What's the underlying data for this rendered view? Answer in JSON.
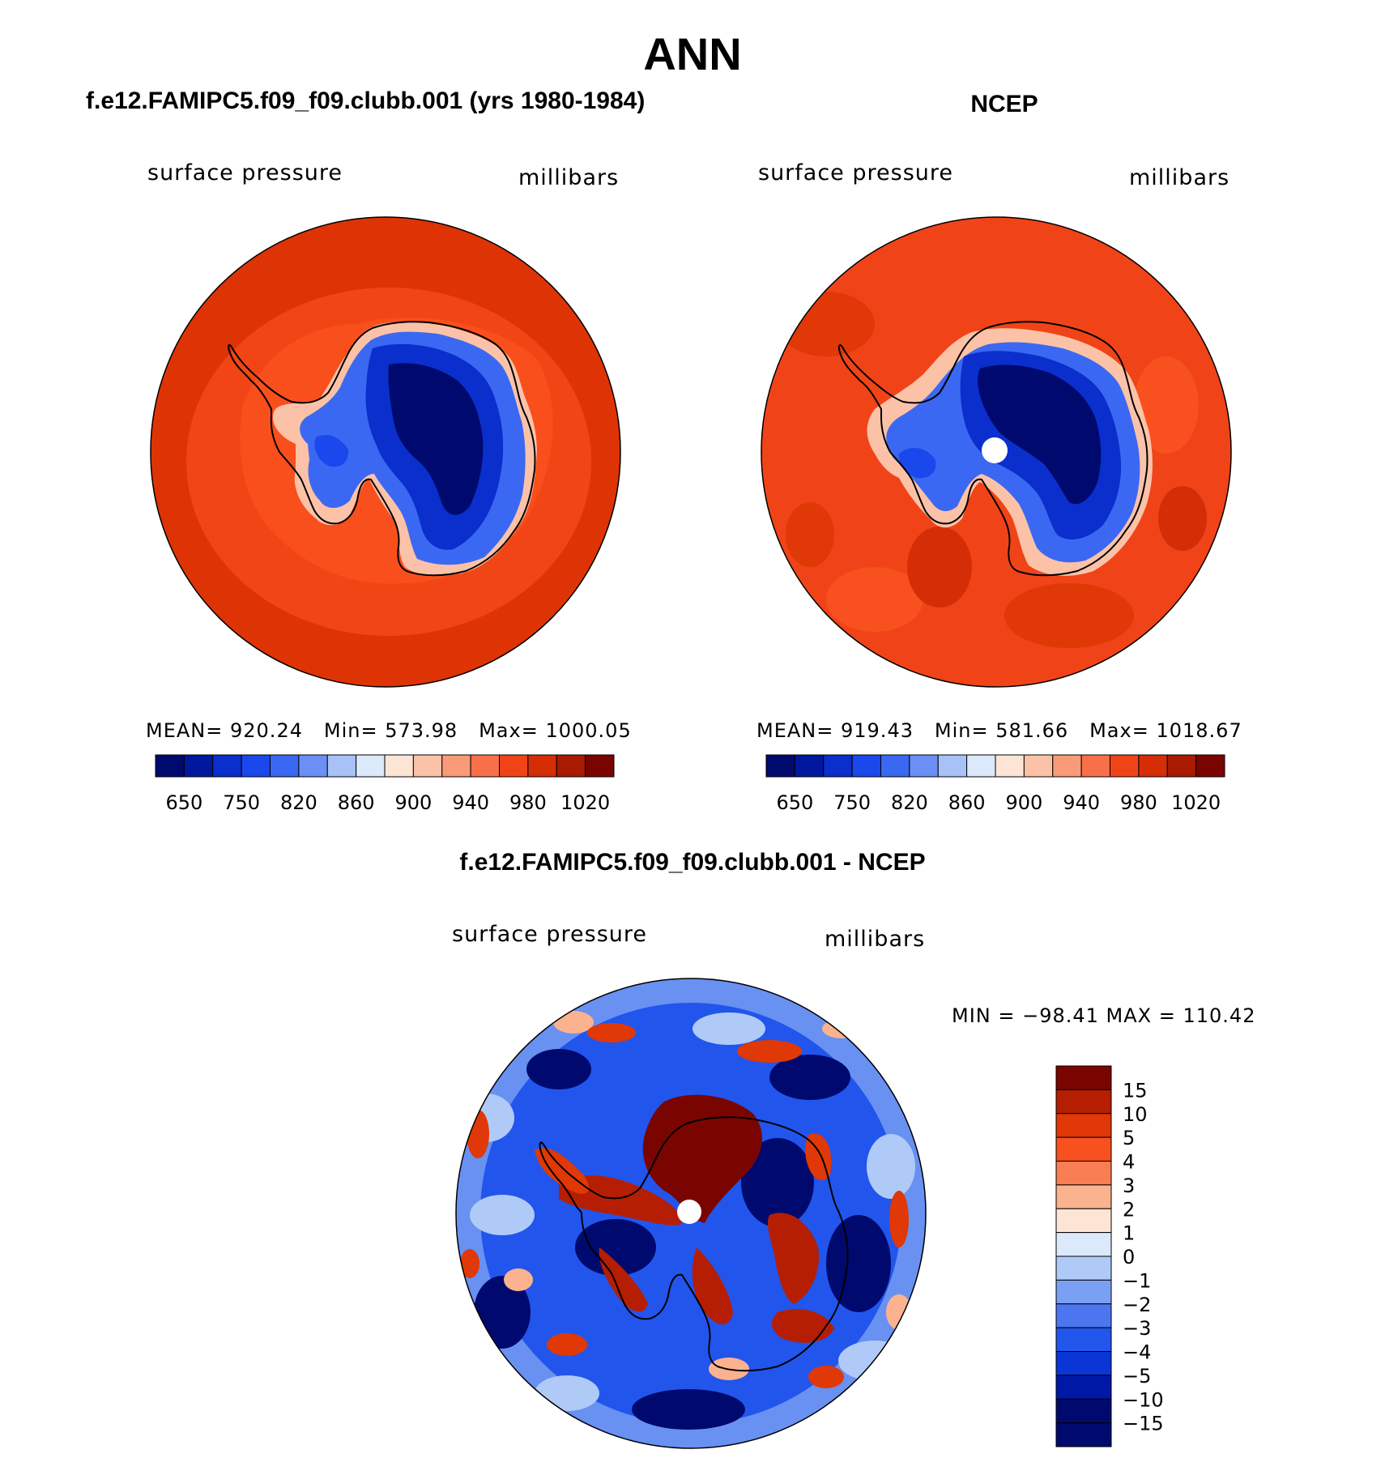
{
  "main_title": "ANN",
  "panels": [
    {
      "title": "f.e12.FAMIPC5.f09_f09.clubb.001 (yrs 1980-1984)",
      "left_label": "surface pressure",
      "right_label": "millibars",
      "stats": {
        "mean_label": "MEAN=",
        "mean": "920.24",
        "min_label": "Min=",
        "min": "573.98",
        "max_label": "Max=",
        "max": "1000.05"
      }
    },
    {
      "title": "NCEP",
      "left_label": "surface pressure",
      "right_label": "millibars",
      "stats": {
        "mean_label": "MEAN=",
        "mean": "919.43",
        "min_label": "Min=",
        "min": "581.66",
        "max_label": "Max=",
        "max": "1018.67"
      }
    },
    {
      "title": "f.e12.FAMIPC5.f09_f09.clubb.001 - NCEP",
      "left_label": "surface pressure",
      "right_label": "millibars",
      "minmax_text": "MIN = −98.41 MAX = 110.42"
    }
  ],
  "colorbar_abs": {
    "colors": [
      "#000a6e",
      "#00189e",
      "#0a2fcc",
      "#1a48ec",
      "#3b68f2",
      "#6b8ff5",
      "#a8c2f8",
      "#dbe9fb",
      "#fde5d6",
      "#fbc2a8",
      "#f99a78",
      "#f8704a",
      "#f04418",
      "#d52d06",
      "#a81a02",
      "#7a0500"
    ],
    "tick_labels": [
      "650",
      "750",
      "820",
      "860",
      "900",
      "940",
      "980",
      "1020"
    ]
  },
  "colorbar_diff": {
    "colors": [
      "#7a0500",
      "#b51e02",
      "#e03806",
      "#f8501e",
      "#f97e54",
      "#fbb28e",
      "#fde5d6",
      "#dbe9fb",
      "#b0caf8",
      "#7aa0f4",
      "#4c76f0",
      "#2255ec",
      "#0a36d8",
      "#0018a8",
      "#000a6e"
    ],
    "tick_labels": [
      "15",
      "10",
      "5",
      "4",
      "3",
      "2",
      "1",
      "0",
      "−1",
      "−2",
      "−3",
      "−4",
      "−5",
      "−10",
      "−15"
    ]
  },
  "colors": {
    "ocean_model": "#de3405",
    "ocean_ring": "#f8501e",
    "land_outline": "#000000"
  }
}
